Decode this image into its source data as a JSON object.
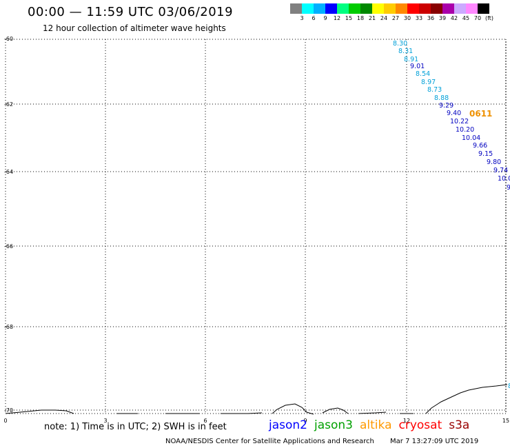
{
  "header": {
    "title": "00:00 — 11:59 UTC 03/06/2019",
    "subtitle": "12 hour collection of altimeter wave heights"
  },
  "color_scale": {
    "unit": "(ft)",
    "swatches": [
      "#808080",
      "#00ffff",
      "#00b0ff",
      "#0000ff",
      "#00ff80",
      "#00cc00",
      "#008800",
      "#ffff00",
      "#ffcc00",
      "#ff8800",
      "#ff0000",
      "#cc0000",
      "#880000",
      "#aa00aa",
      "#ccaaff",
      "#ff88ff",
      "#000000"
    ],
    "labels": [
      "3",
      "6",
      "9",
      "12",
      "15",
      "18",
      "21",
      "24",
      "27",
      "30",
      "33",
      "36",
      "39",
      "42",
      "45",
      "70"
    ]
  },
  "map": {
    "lat_labels": [
      "-60",
      "-62",
      "-64",
      "-66",
      "-68",
      "-70"
    ],
    "lon_labels": [
      "0",
      "3",
      "6",
      "9",
      "12",
      "15"
    ],
    "pass_label": {
      "text": "0611",
      "color": "#ee9000"
    },
    "swh_points": [
      {
        "text": "8.30",
        "color": "#00a0d8"
      },
      {
        "text": "8.31",
        "color": "#00a0d8"
      },
      {
        "text": "8.91",
        "color": "#00a0d8"
      },
      {
        "text": "9.01",
        "color": "#0000c0"
      },
      {
        "text": "8.54",
        "color": "#00a0d8"
      },
      {
        "text": "8.97",
        "color": "#00a0d8"
      },
      {
        "text": "8.73",
        "color": "#00a0d8"
      },
      {
        "text": "8.88",
        "color": "#00a0d8"
      },
      {
        "text": "9.29",
        "color": "#0000c0"
      },
      {
        "text": "9.40",
        "color": "#0000c0"
      },
      {
        "text": "10.22",
        "color": "#0000c0"
      },
      {
        "text": "10.20",
        "color": "#0000c0"
      },
      {
        "text": "10.04",
        "color": "#0000c0"
      },
      {
        "text": "9.66",
        "color": "#0000c0"
      },
      {
        "text": "9.15",
        "color": "#0000c0"
      },
      {
        "text": "9.80",
        "color": "#0000c0"
      },
      {
        "text": "9.74",
        "color": "#0000c0"
      },
      {
        "text": "10.0",
        "color": "#0000c0"
      },
      {
        "text": "9",
        "color": "#0000c0"
      }
    ],
    "edge_point": {
      "text": "8",
      "color": "#00a0d8"
    }
  },
  "footer": {
    "note": "note: 1) Time is in UTC; 2) SWH is in feet",
    "legend": [
      {
        "name": "jason2",
        "color": "#0000ff"
      },
      {
        "name": "jason3",
        "color": "#00a000"
      },
      {
        "name": "altika",
        "color": "#ff9900"
      },
      {
        "name": "cryosat",
        "color": "#ff0000"
      },
      {
        "name": "s3a",
        "color": "#990000"
      }
    ],
    "credit": "NOAA/NESDIS Center for Satellite Applications and Research",
    "timestamp": "Mar  7 13:27:09 UTC 2019"
  }
}
